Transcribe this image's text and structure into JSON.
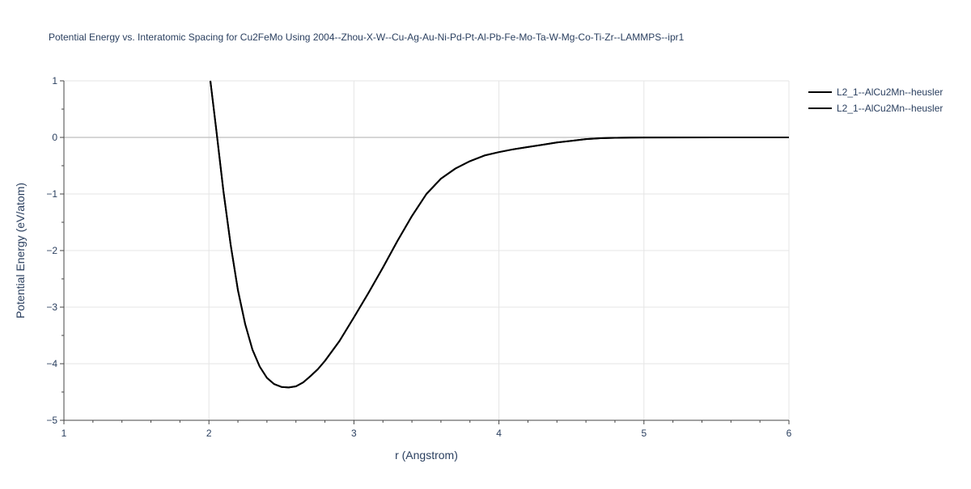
{
  "chart_data": {
    "type": "line",
    "title": "Potential Energy vs. Interatomic Spacing for Cu2FeMo Using 2004--Zhou-X-W--Cu-Ag-Au-Ni-Pd-Pt-Al-Pb-Fe-Mo-Ta-W-Mg-Co-Ti-Zr--LAMMPS--ipr1",
    "xlabel": "r (Angstrom)",
    "ylabel": "Potential Energy (eV/atom)",
    "xlim": [
      1,
      6
    ],
    "ylim": [
      -5,
      1
    ],
    "x_ticks": [
      "1",
      "2",
      "3",
      "4",
      "5",
      "6"
    ],
    "y_ticks": [
      "1",
      "0",
      "−1",
      "−2",
      "−3",
      "−4",
      "−5"
    ],
    "grid": true,
    "legend_position": "top-right",
    "line_color": "#000000",
    "series": [
      {
        "name": "L2_1--AlCu2Mn--heusler",
        "x": [
          2.01,
          2.05,
          2.1,
          2.15,
          2.2,
          2.25,
          2.3,
          2.35,
          2.4,
          2.45,
          2.5,
          2.55,
          2.6,
          2.65,
          2.7,
          2.75,
          2.8,
          2.9,
          3.0,
          3.1,
          3.2,
          3.3,
          3.4,
          3.5,
          3.6,
          3.7,
          3.8,
          3.9,
          4.0,
          4.1,
          4.2,
          4.3,
          4.4,
          4.5,
          4.6,
          4.7,
          4.8,
          4.9,
          5.0,
          5.5,
          6.0
        ],
        "y": [
          1.0,
          0.15,
          -0.95,
          -1.9,
          -2.7,
          -3.3,
          -3.75,
          -4.05,
          -4.25,
          -4.36,
          -4.41,
          -4.42,
          -4.4,
          -4.33,
          -4.22,
          -4.1,
          -3.95,
          -3.6,
          -3.18,
          -2.75,
          -2.3,
          -1.83,
          -1.39,
          -1.0,
          -0.73,
          -0.55,
          -0.42,
          -0.32,
          -0.26,
          -0.21,
          -0.17,
          -0.13,
          -0.09,
          -0.06,
          -0.03,
          -0.015,
          -0.008,
          -0.004,
          -0.002,
          0.0,
          0.0
        ]
      },
      {
        "name": "L2_1--AlCu2Mn--heusler",
        "x": [
          2.01,
          2.05,
          2.1,
          2.15,
          2.2,
          2.25,
          2.3,
          2.35,
          2.4,
          2.45,
          2.5,
          2.55,
          2.6,
          2.65,
          2.7,
          2.75,
          2.8,
          2.9,
          3.0,
          3.1,
          3.2,
          3.3,
          3.4,
          3.5,
          3.6,
          3.7,
          3.8,
          3.9,
          4.0,
          4.1,
          4.2,
          4.3,
          4.4,
          4.5,
          4.6,
          4.7,
          4.8,
          4.9,
          5.0,
          5.5,
          6.0
        ],
        "y": [
          1.0,
          0.15,
          -0.95,
          -1.9,
          -2.7,
          -3.3,
          -3.75,
          -4.05,
          -4.25,
          -4.36,
          -4.41,
          -4.42,
          -4.4,
          -4.33,
          -4.22,
          -4.1,
          -3.95,
          -3.6,
          -3.18,
          -2.75,
          -2.3,
          -1.83,
          -1.39,
          -1.0,
          -0.73,
          -0.55,
          -0.42,
          -0.32,
          -0.26,
          -0.21,
          -0.17,
          -0.13,
          -0.09,
          -0.06,
          -0.03,
          -0.015,
          -0.008,
          -0.004,
          -0.002,
          0.0,
          0.0
        ]
      }
    ]
  }
}
